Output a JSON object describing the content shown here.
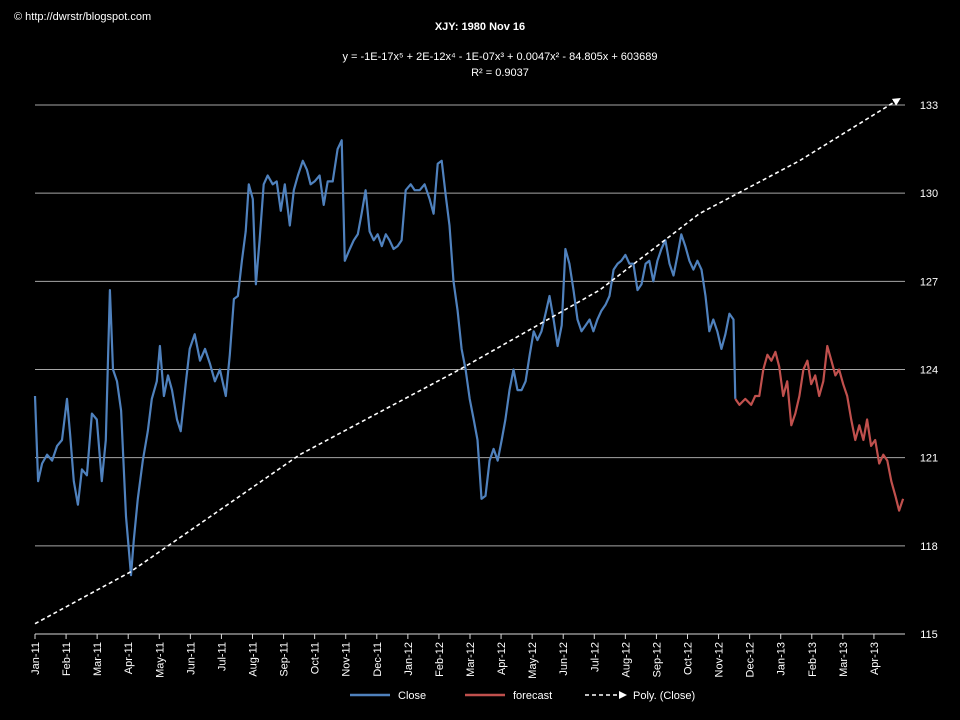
{
  "chart_data": {
    "type": "line",
    "credit": "© http://dwrstr/blogspot.com",
    "title": "XJY: 1980 Nov 16",
    "annotations": [
      "y = -1E-17x⁵ + 2E-12x⁴ - 1E-07x³ + 0.0047x² - 84.805x + 603689",
      "R² = 0.9037"
    ],
    "xlim": [
      0,
      28
    ],
    "xticks": [
      {
        "value": 0,
        "label": "Jan-11"
      },
      {
        "value": 1,
        "label": "Feb-11"
      },
      {
        "value": 2,
        "label": "Mar-11"
      },
      {
        "value": 3,
        "label": "Apr-11"
      },
      {
        "value": 4,
        "label": "May-11"
      },
      {
        "value": 5,
        "label": "Jun-11"
      },
      {
        "value": 6,
        "label": "Jul-11"
      },
      {
        "value": 7,
        "label": "Aug-11"
      },
      {
        "value": 8,
        "label": "Sep-11"
      },
      {
        "value": 9,
        "label": "Oct-11"
      },
      {
        "value": 10,
        "label": "Nov-11"
      },
      {
        "value": 11,
        "label": "Dec-11"
      },
      {
        "value": 12,
        "label": "Jan-12"
      },
      {
        "value": 13,
        "label": "Feb-12"
      },
      {
        "value": 14,
        "label": "Mar-12"
      },
      {
        "value": 15,
        "label": "Apr-12"
      },
      {
        "value": 16,
        "label": "May-12"
      },
      {
        "value": 17,
        "label": "Jun-12"
      },
      {
        "value": 18,
        "label": "Jul-12"
      },
      {
        "value": 19,
        "label": "Aug-12"
      },
      {
        "value": 20,
        "label": "Sep-12"
      },
      {
        "value": 21,
        "label": "Oct-12"
      },
      {
        "value": 22,
        "label": "Nov-12"
      },
      {
        "value": 23,
        "label": "Dec-12"
      },
      {
        "value": 24,
        "label": "Jan-13"
      },
      {
        "value": 25,
        "label": "Feb-13"
      },
      {
        "value": 26,
        "label": "Mar-13"
      },
      {
        "value": 27,
        "label": "Apr-13"
      }
    ],
    "ylim": [
      115,
      133
    ],
    "yticks": [
      115,
      118,
      121,
      124,
      127,
      130,
      133
    ],
    "grid": true,
    "legend": "bottom",
    "series": [
      {
        "name": "Close",
        "color": "#4f81bd",
        "dashed": false,
        "x": [
          0.0,
          0.1,
          0.23,
          0.39,
          0.55,
          0.71,
          0.87,
          1.03,
          1.13,
          1.25,
          1.38,
          1.51,
          1.67,
          1.83,
          1.99,
          2.15,
          2.28,
          2.41,
          2.51,
          2.64,
          2.77,
          2.93,
          3.09,
          3.18,
          3.31,
          3.47,
          3.63,
          3.76,
          3.92,
          4.02,
          4.15,
          4.28,
          4.41,
          4.57,
          4.69,
          4.86,
          4.98,
          5.14,
          5.31,
          5.47,
          5.63,
          5.79,
          5.95,
          6.14,
          6.27,
          6.4,
          6.53,
          6.66,
          6.78,
          6.88,
          7.01,
          7.11,
          7.23,
          7.36,
          7.49,
          7.65,
          7.78,
          7.91,
          8.04,
          8.2,
          8.33,
          8.46,
          8.62,
          8.75,
          8.87,
          9.0,
          9.16,
          9.29,
          9.42,
          9.58,
          9.74,
          9.87,
          9.97,
          10.13,
          10.26,
          10.39,
          10.51,
          10.64,
          10.77,
          10.9,
          11.03,
          11.16,
          11.29,
          11.41,
          11.54,
          11.67,
          11.8,
          11.93,
          12.09,
          12.22,
          12.38,
          12.54,
          12.7,
          12.83,
          12.96,
          13.09,
          13.22,
          13.34,
          13.47,
          13.6,
          13.73,
          13.86,
          13.99,
          14.12,
          14.24,
          14.37,
          14.5,
          14.63,
          14.76,
          14.89,
          15.02,
          15.14,
          15.27,
          15.4,
          15.53,
          15.66,
          15.79,
          15.92,
          16.05,
          16.17,
          16.3,
          16.43,
          16.56,
          16.69,
          16.82,
          16.95,
          17.07,
          17.2,
          17.33,
          17.46,
          17.59,
          17.72,
          17.85,
          17.97,
          18.1,
          18.23,
          18.36,
          18.49,
          18.62,
          18.75,
          18.87,
          19.0,
          19.13,
          19.26,
          19.39,
          19.52,
          19.65,
          19.77,
          19.9,
          20.03,
          20.16,
          20.29,
          20.42,
          20.55,
          20.68,
          20.8,
          20.93,
          21.06,
          21.19,
          21.32,
          21.45,
          21.58,
          21.7,
          21.83,
          21.96,
          22.09,
          22.22,
          22.35,
          22.48,
          22.54
        ],
        "values": [
          123.1,
          120.2,
          120.8,
          121.1,
          120.9,
          121.4,
          121.6,
          123.0,
          121.8,
          120.2,
          119.4,
          120.6,
          120.4,
          122.5,
          122.3,
          120.2,
          121.6,
          126.7,
          124.0,
          123.6,
          122.6,
          119.0,
          117.0,
          118.2,
          119.6,
          120.9,
          121.9,
          123.0,
          123.6,
          124.8,
          123.1,
          123.8,
          123.3,
          122.3,
          121.9,
          123.6,
          124.7,
          125.2,
          124.3,
          124.7,
          124.2,
          123.6,
          124.0,
          123.1,
          124.5,
          126.4,
          126.5,
          127.7,
          128.7,
          130.3,
          129.8,
          126.9,
          128.4,
          130.3,
          130.6,
          130.3,
          130.4,
          129.4,
          130.3,
          128.9,
          130.1,
          130.6,
          131.1,
          130.8,
          130.3,
          130.4,
          130.6,
          129.6,
          130.4,
          130.4,
          131.5,
          131.8,
          127.7,
          128.1,
          128.4,
          128.6,
          129.3,
          130.1,
          128.7,
          128.4,
          128.6,
          128.2,
          128.6,
          128.4,
          128.1,
          128.2,
          128.4,
          130.1,
          130.3,
          130.1,
          130.1,
          130.3,
          129.8,
          129.3,
          131.0,
          131.1,
          129.9,
          128.9,
          127.0,
          126.0,
          124.7,
          124.0,
          123.0,
          122.3,
          121.6,
          119.6,
          119.7,
          120.9,
          121.3,
          120.9,
          121.6,
          122.3,
          123.3,
          124.0,
          123.3,
          123.3,
          123.6,
          124.5,
          125.3,
          125.0,
          125.3,
          125.9,
          126.5,
          125.7,
          124.8,
          125.5,
          128.1,
          127.6,
          126.7,
          125.7,
          125.3,
          125.5,
          125.7,
          125.3,
          125.7,
          126.0,
          126.2,
          126.5,
          127.4,
          127.6,
          127.7,
          127.9,
          127.6,
          127.6,
          126.7,
          126.9,
          127.6,
          127.7,
          127.0,
          127.7,
          128.1,
          128.4,
          127.6,
          127.2,
          127.9,
          128.6,
          128.2,
          127.7,
          127.4,
          127.7,
          127.4,
          126.5,
          125.3,
          125.7,
          125.3,
          124.7,
          125.2,
          125.9,
          125.7,
          123.0
        ]
      },
      {
        "name": "forecast",
        "color": "#c0504d",
        "dashed": false,
        "x": [
          22.54,
          22.67,
          22.86,
          23.05,
          23.18,
          23.31,
          23.44,
          23.57,
          23.7,
          23.83,
          23.95,
          24.08,
          24.21,
          24.34,
          24.47,
          24.6,
          24.73,
          24.86,
          24.98,
          25.11,
          25.24,
          25.37,
          25.5,
          25.63,
          25.76,
          25.88,
          26.01,
          26.14,
          26.27,
          26.4,
          26.53,
          26.66,
          26.78,
          26.91,
          27.04,
          27.17,
          27.3,
          27.43,
          27.56,
          27.69,
          27.81,
          27.94
        ],
        "values": [
          123.0,
          122.8,
          123.0,
          122.8,
          123.1,
          123.1,
          124.0,
          124.5,
          124.3,
          124.6,
          124.1,
          123.1,
          123.6,
          122.1,
          122.5,
          123.1,
          124.0,
          124.3,
          123.5,
          123.8,
          123.1,
          123.6,
          124.8,
          124.3,
          123.8,
          124.0,
          123.5,
          123.1,
          122.3,
          121.6,
          122.1,
          121.6,
          122.3,
          121.4,
          121.6,
          120.8,
          121.1,
          120.9,
          120.2,
          119.7,
          119.2,
          119.6
        ]
      },
      {
        "name": "Poly. (Close)",
        "color": "#ffffff",
        "dashed": true,
        "x": [
          0.0,
          3.05,
          8.52,
          13.67,
          18.17,
          21.38,
          24.6,
          27.81
        ],
        "values": [
          115.35,
          117.1,
          121.1,
          124.0,
          126.7,
          129.3,
          131.1,
          133.2
        ]
      }
    ]
  }
}
